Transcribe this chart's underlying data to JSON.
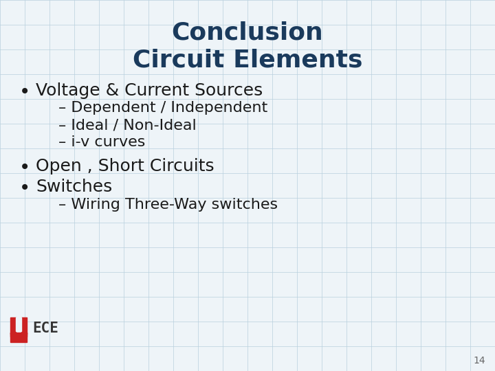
{
  "title_line1": "Conclusion",
  "title_line2": "Circuit Elements",
  "title_color": "#1a3a5c",
  "title_fontsize": 26,
  "background_color": "#eef4f8",
  "grid_color": "#b8d0de",
  "text_color": "#1a1a1a",
  "bullet1": "Voltage & Current Sources",
  "sub1a": "– Dependent / Independent",
  "sub1b": "– Ideal / Non-Ideal",
  "sub1c": "– i-v curves",
  "bullet2": "Open , Short Circuits",
  "bullet3": "Switches",
  "sub3a": "– Wiring Three-Way switches",
  "bullet_fontsize": 18,
  "sub_fontsize": 16,
  "page_number": "14",
  "logo_color": "#cc2222",
  "logo_dark": "#333333",
  "logo_text": "ECE"
}
